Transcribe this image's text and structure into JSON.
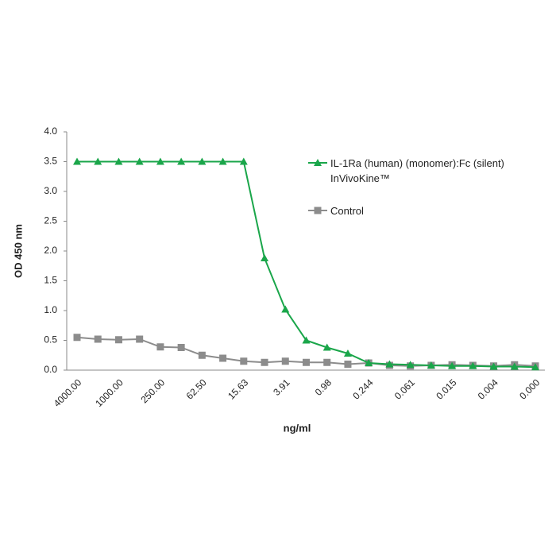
{
  "chart_data": {
    "type": "line",
    "x_label": "ng/ml",
    "y_label": "OD  450 nm",
    "categories": [
      "4000.00",
      null,
      "1000.00",
      null,
      "250.00",
      null,
      "62.50",
      null,
      "15.63",
      null,
      "3.91",
      null,
      "0.98",
      null,
      "0.244",
      null,
      "0.061",
      null,
      "0.015",
      null,
      "0.004",
      null,
      "0.000"
    ],
    "series": [
      {
        "name": "IL-1Ra (human) (monomer):Fc (silent) InVivoKine™",
        "color": "#1aa64a",
        "marker": "triangle",
        "values": [
          3.5,
          3.5,
          3.5,
          3.5,
          3.5,
          3.5,
          3.5,
          3.5,
          3.5,
          1.88,
          1.02,
          0.5,
          0.38,
          0.28,
          0.12,
          0.1,
          0.09,
          0.08,
          0.07,
          0.07,
          0.06,
          0.06,
          0.05
        ]
      },
      {
        "name": "Control",
        "color": "#8c8c8c",
        "marker": "square",
        "values": [
          0.55,
          0.52,
          0.51,
          0.52,
          0.39,
          0.38,
          0.25,
          0.2,
          0.15,
          0.13,
          0.15,
          0.13,
          0.13,
          0.1,
          0.12,
          0.08,
          0.07,
          0.08,
          0.09,
          0.08,
          0.07,
          0.09,
          0.07
        ]
      }
    ],
    "ylim": [
      0,
      4
    ],
    "yticks": [
      {
        "value": 0,
        "label": "0.0"
      },
      0.5,
      {
        "value": 1,
        "label": "1.0"
      },
      1.5,
      {
        "value": 2,
        "label": "2.0"
      },
      2.5,
      {
        "value": 3,
        "label": "3.0"
      },
      3.5,
      {
        "value": 4,
        "label": "4.0"
      }
    ],
    "grid": false
  }
}
